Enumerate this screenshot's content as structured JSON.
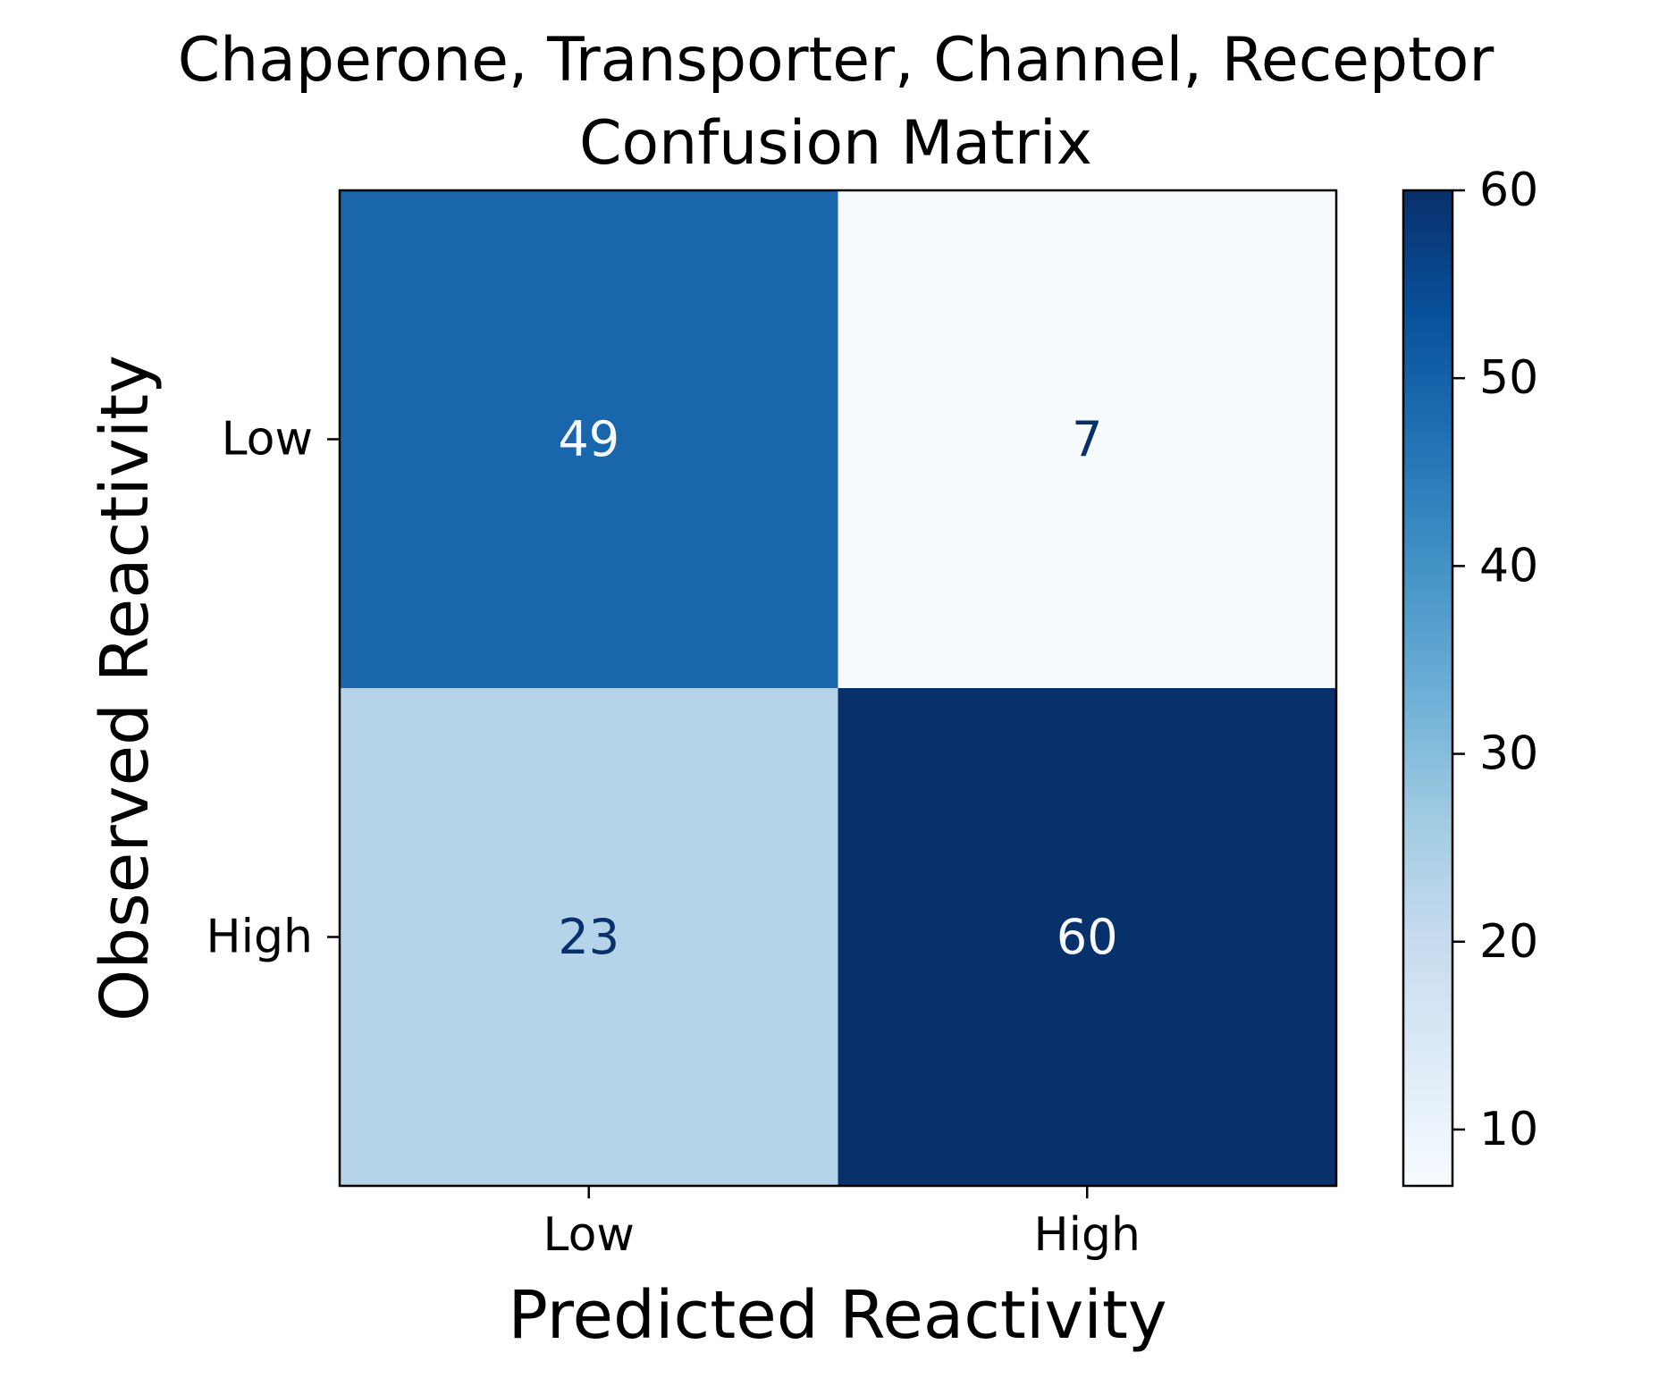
{
  "chart_data": {
    "type": "heatmap",
    "title": "Chaperone, Transporter, Channel, Receptor\nConfusion Matrix",
    "title_lines": [
      "Chaperone, Transporter, Channel, Receptor",
      "Confusion Matrix"
    ],
    "xlabel": "Predicted Reactivity",
    "ylabel": "Observed Reactivity",
    "x_categories": [
      "Low",
      "High"
    ],
    "y_categories": [
      "Low",
      "High"
    ],
    "values": [
      [
        49,
        7
      ],
      [
        23,
        60
      ]
    ],
    "colormap": "Blues",
    "colorbar": {
      "min": 7,
      "max": 60,
      "ticks": [
        10,
        20,
        30,
        40,
        50,
        60
      ]
    },
    "text_colors": {
      "on_dark": "#f7fbff",
      "on_light": "#08306b"
    },
    "grid": false
  }
}
